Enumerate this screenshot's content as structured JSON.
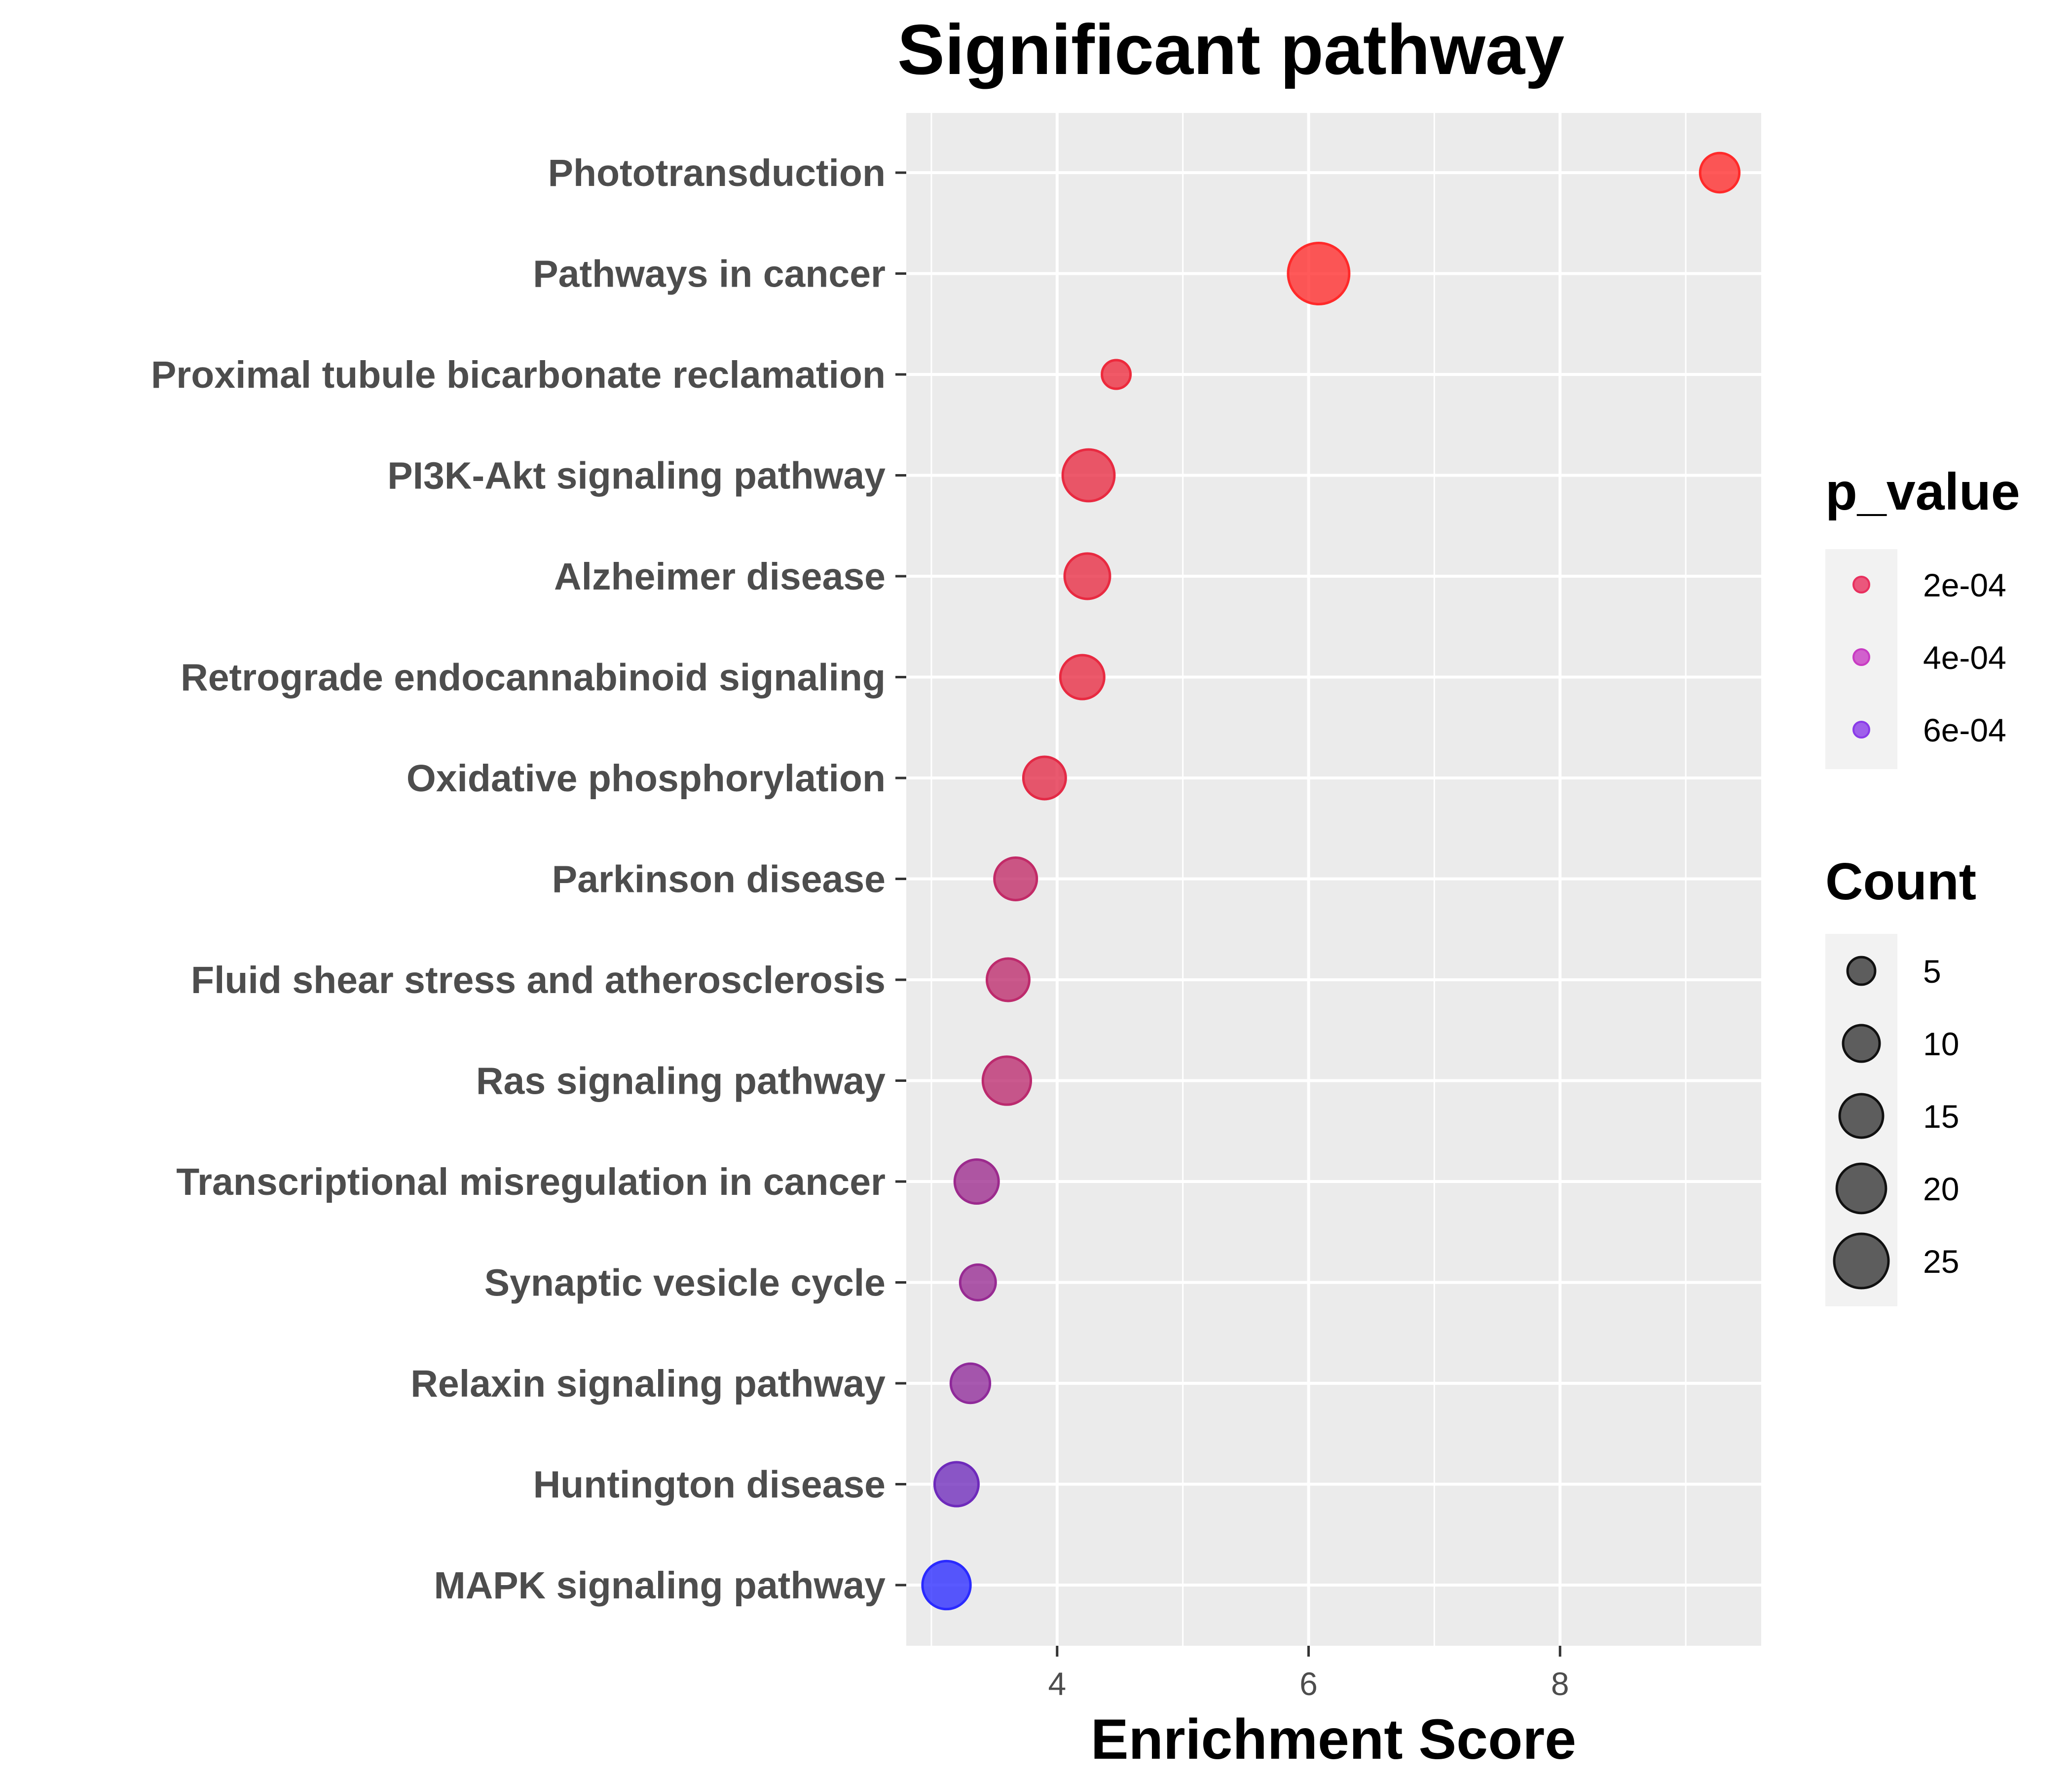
{
  "chart_data": {
    "type": "scatter",
    "title": "Significant pathway",
    "xlabel": "Enrichment Score",
    "ylabel": "",
    "xlim": [
      2.8,
      9.6
    ],
    "xticks": [
      4,
      6,
      8
    ],
    "grid": true,
    "legend_position": "right",
    "color_low": "#ff2a2a",
    "color_high": "#2a2aff",
    "legends": {
      "color": {
        "title": "p_value",
        "entries": [
          {
            "label": "2e-04",
            "value": 0.0002,
            "color": "#e8305e"
          },
          {
            "label": "4e-04",
            "value": 0.0004,
            "color": "#c83cc3"
          },
          {
            "label": "6e-04",
            "value": 0.0006,
            "color": "#8a3be8"
          }
        ]
      },
      "size": {
        "title": "Count",
        "entries": [
          {
            "label": "5",
            "value": 5
          },
          {
            "label": "10",
            "value": 10
          },
          {
            "label": "15",
            "value": 15
          },
          {
            "label": "20",
            "value": 20
          },
          {
            "label": "25",
            "value": 25
          }
        ]
      }
    },
    "points": [
      {
        "pathway": "Phototransduction",
        "x": 9.27,
        "count": 8,
        "p_value": 1e-05
      },
      {
        "pathway": "Pathways in cancer",
        "x": 6.08,
        "count": 26,
        "p_value": 1e-05
      },
      {
        "pathway": "Proximal tubule bicarbonate reclamation",
        "x": 4.47,
        "count": 3,
        "p_value": 8e-05
      },
      {
        "pathway": "PI3K-Akt signaling pathway",
        "x": 4.25,
        "count": 17,
        "p_value": 0.0001
      },
      {
        "pathway": "Alzheimer disease",
        "x": 4.24,
        "count": 12,
        "p_value": 0.0001
      },
      {
        "pathway": "Retrograde endocannabinoid signaling",
        "x": 4.2,
        "count": 11,
        "p_value": 0.0001
      },
      {
        "pathway": "Oxidative phosphorylation",
        "x": 3.9,
        "count": 10,
        "p_value": 0.00012
      },
      {
        "pathway": "Parkinson disease",
        "x": 3.67,
        "count": 10,
        "p_value": 0.00025
      },
      {
        "pathway": "Fluid shear stress and atherosclerosis",
        "x": 3.61,
        "count": 10,
        "p_value": 0.00027
      },
      {
        "pathway": "Ras signaling pathway",
        "x": 3.6,
        "count": 14,
        "p_value": 0.00028
      },
      {
        "pathway": "Transcriptional misregulation in cancer",
        "x": 3.36,
        "count": 11,
        "p_value": 0.0004
      },
      {
        "pathway": "Synaptic vesicle cycle",
        "x": 3.37,
        "count": 6,
        "p_value": 0.00042
      },
      {
        "pathway": "Relaxin signaling pathway",
        "x": 3.31,
        "count": 8,
        "p_value": 0.00045
      },
      {
        "pathway": "Huntington disease",
        "x": 3.2,
        "count": 11,
        "p_value": 0.00058
      },
      {
        "pathway": "MAPK signaling pathway",
        "x": 3.12,
        "count": 14,
        "p_value": 0.00085
      }
    ]
  }
}
